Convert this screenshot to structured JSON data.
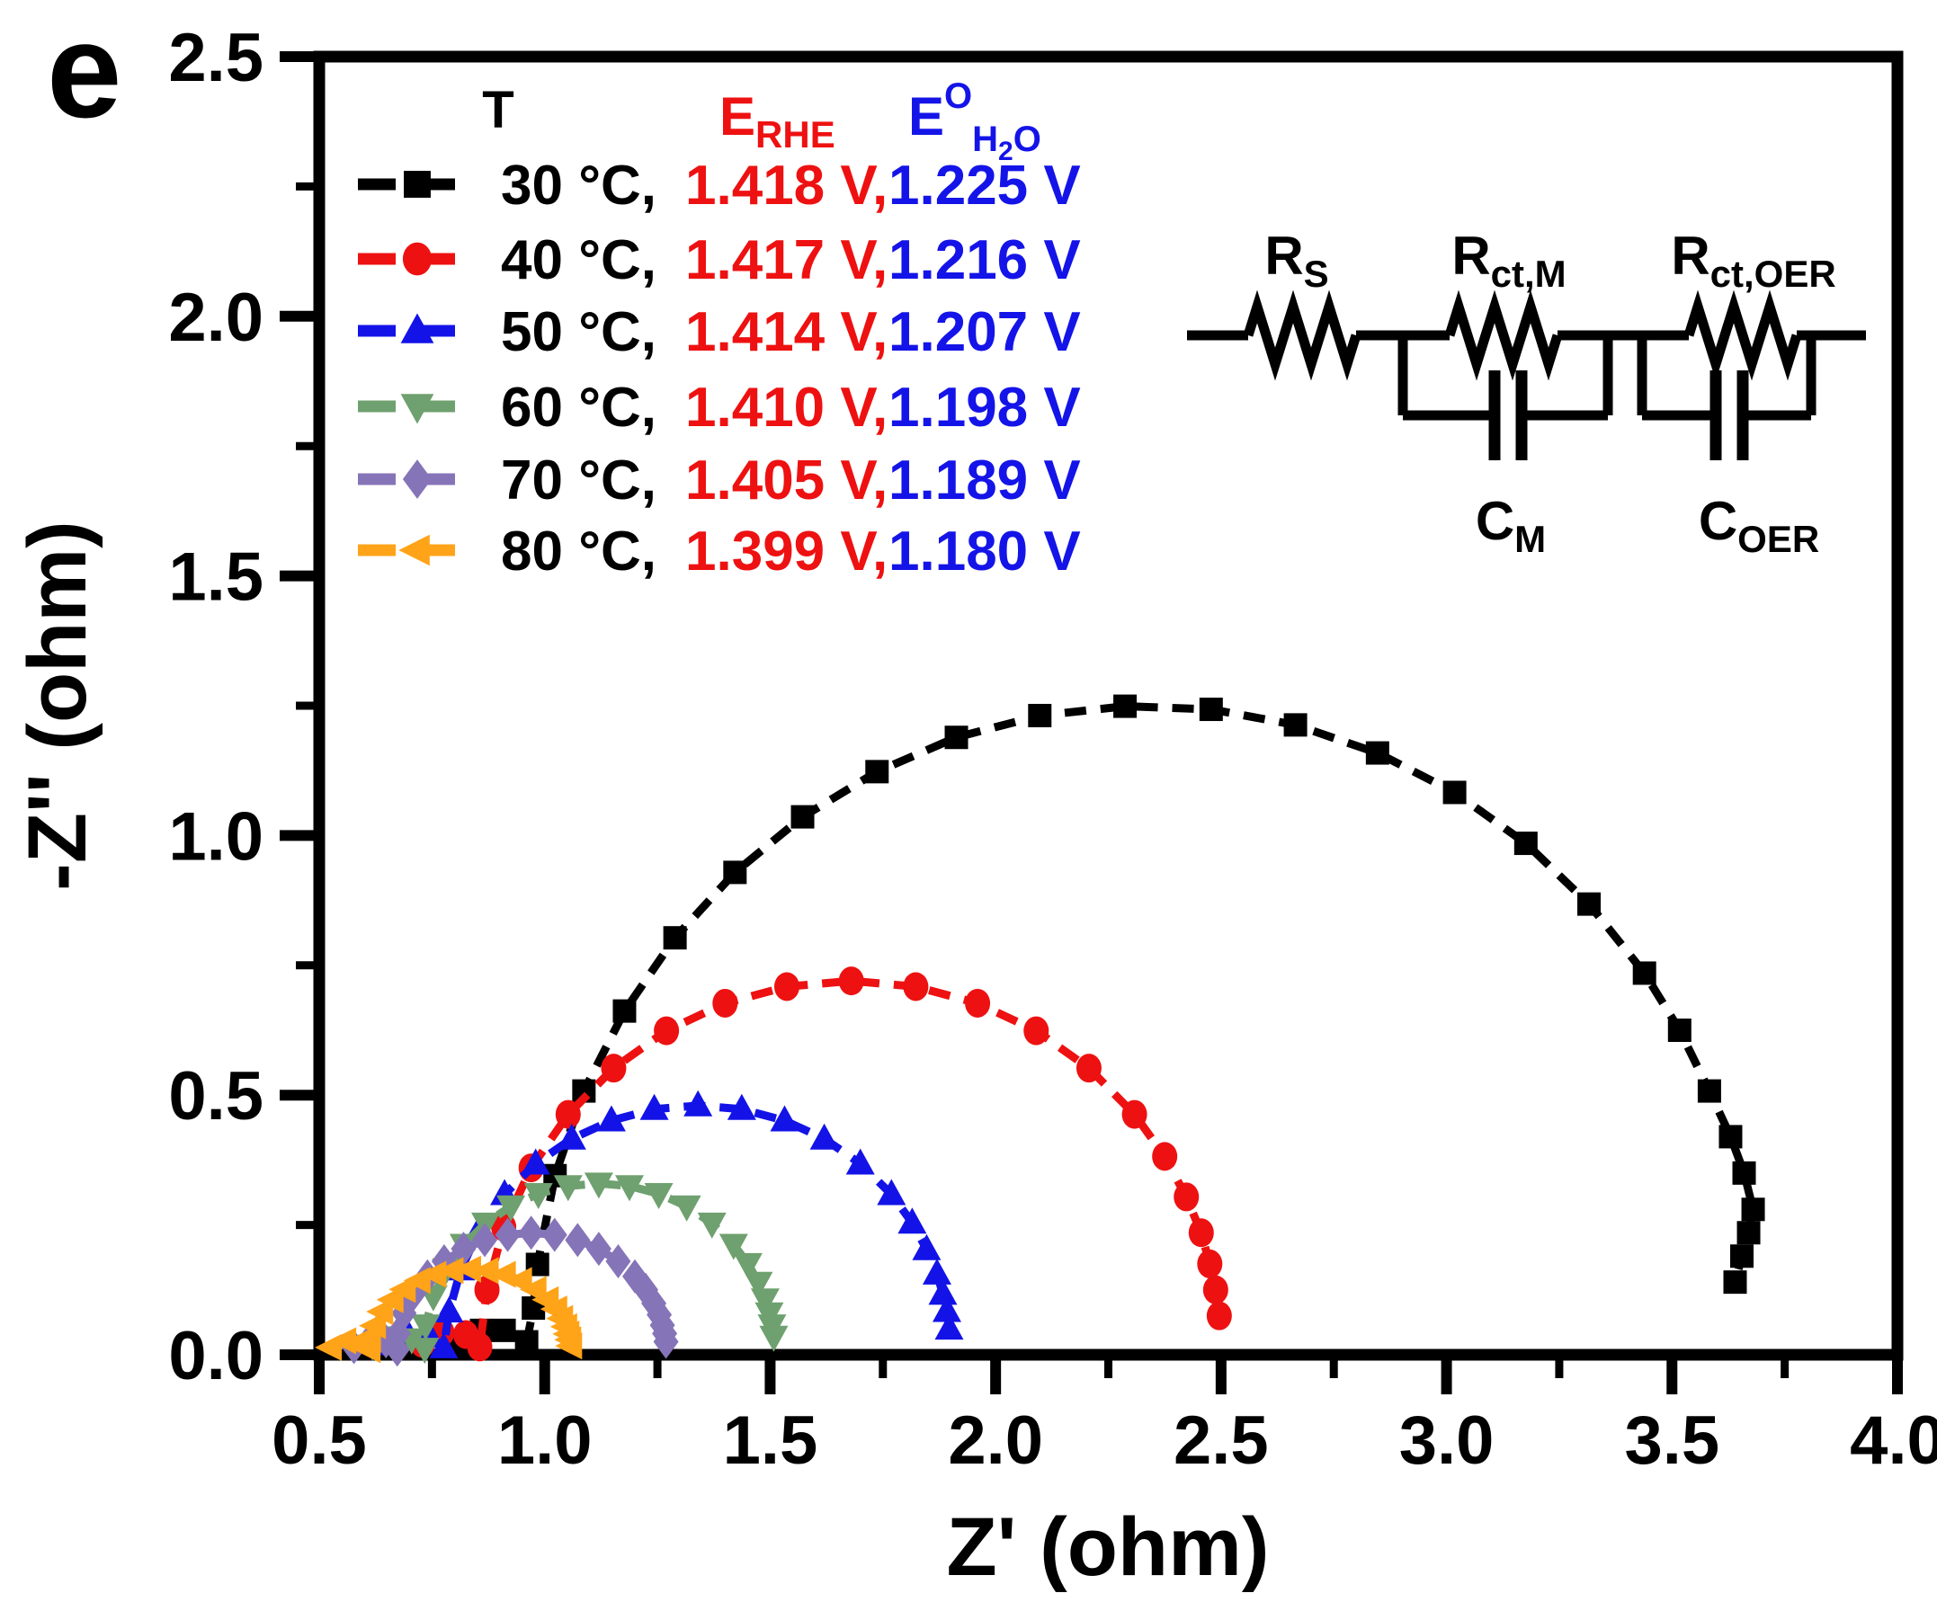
{
  "panel_label": "e",
  "figure": {
    "background": "#ffffff",
    "axis_color": "#000000",
    "legend_red": "#ee1111",
    "legend_blue": "#1414e8"
  },
  "axes": {
    "x": {
      "title": "Z' (ohm)",
      "min": 0.5,
      "max": 4.0,
      "major_ticks": [
        0.5,
        1.0,
        1.5,
        2.0,
        2.5,
        3.0,
        3.5,
        4.0
      ],
      "tick_labels": [
        "0.5",
        "1.0",
        "1.5",
        "2.0",
        "2.5",
        "3.0",
        "3.5",
        "4.0"
      ],
      "minor_ticks": [
        0.75,
        1.25,
        1.75,
        2.25,
        2.75,
        3.25,
        3.75
      ]
    },
    "y": {
      "title": "-Z'' (ohm)",
      "min": 0.0,
      "max": 2.5,
      "major_ticks": [
        0.0,
        0.5,
        1.0,
        1.5,
        2.0,
        2.5
      ],
      "tick_labels": [
        "0.0",
        "0.5",
        "1.0",
        "1.5",
        "2.0",
        "2.5"
      ],
      "minor_ticks": [
        0.25,
        0.75,
        1.25,
        1.75,
        2.25
      ]
    }
  },
  "legend": {
    "header": {
      "t": "T",
      "erhe": {
        "main": "E",
        "sub": "RHE"
      },
      "eh2o": {
        "main": "E",
        "sup": "O",
        "sub_pre": "H",
        "sub_num": "2",
        "sub_post": "O"
      }
    },
    "rows": [
      {
        "temp": "30 °C,",
        "erhe": "1.418 V,",
        "eh2o": "1.225 V",
        "series": 0
      },
      {
        "temp": "40 °C,",
        "erhe": "1.417 V,",
        "eh2o": "1.216 V",
        "series": 1
      },
      {
        "temp": "50 °C,",
        "erhe": "1.414 V,",
        "eh2o": "1.207 V",
        "series": 2
      },
      {
        "temp": "60 °C,",
        "erhe": "1.410 V,",
        "eh2o": "1.198 V",
        "series": 3
      },
      {
        "temp": "70 °C,",
        "erhe": "1.405 V,",
        "eh2o": "1.189 V",
        "series": 4
      },
      {
        "temp": "80 °C,",
        "erhe": "1.399 V,",
        "eh2o": "1.180 V",
        "series": 5
      }
    ]
  },
  "circuit": {
    "labels": {
      "rs": {
        "main": "R",
        "sub": "S"
      },
      "rctm": {
        "main": "R",
        "sub": "ct,M"
      },
      "rctoer": {
        "main": "R",
        "sub": "ct,OER"
      },
      "cm": {
        "main": "C",
        "sub": "M"
      },
      "coer": {
        "main": "C",
        "sub": "OER"
      }
    }
  },
  "chart_data": {
    "type": "scatter",
    "title": "",
    "xlabel": "Z' (ohm)",
    "ylabel": "-Z'' (ohm)",
    "xlim": [
      0.5,
      4.0
    ],
    "ylim": [
      0.0,
      2.5
    ],
    "grid": false,
    "legend_position": "upper-left",
    "series": [
      {
        "name": "30 °C",
        "erhe": "1.418 V",
        "eh2o": "1.225 V",
        "color": "#000000",
        "marker": "square",
        "points": [
          [
            0.81,
            0.025
          ],
          [
            0.86,
            0.047
          ],
          [
            0.91,
            0.047
          ],
          [
            0.96,
            0.025
          ],
          [
            0.975,
            0.09
          ],
          [
            0.984,
            0.174
          ],
          [
            1.023,
            0.345
          ],
          [
            1.087,
            0.508
          ],
          [
            1.177,
            0.662
          ],
          [
            1.289,
            0.803
          ],
          [
            1.422,
            0.929
          ],
          [
            1.572,
            1.036
          ],
          [
            1.737,
            1.123
          ],
          [
            1.913,
            1.189
          ],
          [
            2.098,
            1.231
          ],
          [
            2.287,
            1.249
          ],
          [
            2.478,
            1.243
          ],
          [
            2.665,
            1.213
          ],
          [
            2.847,
            1.159
          ],
          [
            3.018,
            1.083
          ],
          [
            3.176,
            0.985
          ],
          [
            3.316,
            0.868
          ],
          [
            3.439,
            0.735
          ],
          [
            3.517,
            0.625
          ],
          [
            3.583,
            0.508
          ],
          [
            3.63,
            0.42
          ],
          [
            3.66,
            0.35
          ],
          [
            3.68,
            0.28
          ],
          [
            3.67,
            0.235
          ],
          [
            3.655,
            0.19
          ],
          [
            3.64,
            0.14
          ]
        ]
      },
      {
        "name": "40 °C",
        "erhe": "1.417 V",
        "eh2o": "1.216 V",
        "color": "#ee1111",
        "marker": "circle",
        "points": [
          [
            0.729,
            0.022
          ],
          [
            0.772,
            0.043
          ],
          [
            0.825,
            0.039
          ],
          [
            0.856,
            0.015
          ],
          [
            0.872,
            0.125
          ],
          [
            0.909,
            0.246
          ],
          [
            0.97,
            0.36
          ],
          [
            1.052,
            0.463
          ],
          [
            1.153,
            0.552
          ],
          [
            1.27,
            0.624
          ],
          [
            1.4,
            0.677
          ],
          [
            1.537,
            0.709
          ],
          [
            1.68,
            0.72
          ],
          [
            1.823,
            0.709
          ],
          [
            1.96,
            0.677
          ],
          [
            2.09,
            0.624
          ],
          [
            2.207,
            0.552
          ],
          [
            2.308,
            0.463
          ],
          [
            2.375,
            0.382
          ],
          [
            2.423,
            0.304
          ],
          [
            2.456,
            0.235
          ],
          [
            2.475,
            0.175
          ],
          [
            2.488,
            0.125
          ],
          [
            2.496,
            0.075
          ]
        ]
      },
      {
        "name": "50 °C",
        "erhe": "1.414 V",
        "eh2o": "1.207 V",
        "color": "#1313e8",
        "marker": "triangle-up",
        "points": [
          [
            0.659,
            0.02
          ],
          [
            0.697,
            0.039
          ],
          [
            0.745,
            0.035
          ],
          [
            0.776,
            0.014
          ],
          [
            0.788,
            0.083
          ],
          [
            0.814,
            0.164
          ],
          [
            0.855,
            0.24
          ],
          [
            0.911,
            0.309
          ],
          [
            0.98,
            0.368
          ],
          [
            1.06,
            0.416
          ],
          [
            1.148,
            0.451
          ],
          [
            1.243,
            0.473
          ],
          [
            1.34,
            0.48
          ],
          [
            1.437,
            0.473
          ],
          [
            1.532,
            0.451
          ],
          [
            1.62,
            0.416
          ],
          [
            1.7,
            0.368
          ],
          [
            1.769,
            0.309
          ],
          [
            1.815,
            0.254
          ],
          [
            1.847,
            0.203
          ],
          [
            1.87,
            0.156
          ],
          [
            1.883,
            0.117
          ],
          [
            1.892,
            0.084
          ],
          [
            1.897,
            0.05
          ]
        ]
      },
      {
        "name": "60 °C",
        "erhe": "1.410 V",
        "eh2o": "1.198 V",
        "color": "#6fa06f",
        "marker": "triangle-down",
        "points": [
          [
            0.618,
            0.018
          ],
          [
            0.661,
            0.034
          ],
          [
            0.705,
            0.03
          ],
          [
            0.734,
            0.012
          ],
          [
            0.736,
            0.057
          ],
          [
            0.753,
            0.113
          ],
          [
            0.782,
            0.165
          ],
          [
            0.821,
            0.212
          ],
          [
            0.869,
            0.253
          ],
          [
            0.925,
            0.286
          ],
          [
            0.986,
            0.31
          ],
          [
            1.052,
            0.325
          ],
          [
            1.12,
            0.33
          ],
          [
            1.188,
            0.325
          ],
          [
            1.253,
            0.31
          ],
          [
            1.315,
            0.286
          ],
          [
            1.371,
            0.253
          ],
          [
            1.419,
            0.212
          ],
          [
            1.451,
            0.175
          ],
          [
            1.474,
            0.139
          ],
          [
            1.489,
            0.107
          ],
          [
            1.498,
            0.08
          ],
          [
            1.504,
            0.057
          ],
          [
            1.508,
            0.035
          ]
        ]
      },
      {
        "name": "70 °C",
        "erhe": "1.405 V",
        "eh2o": "1.189 V",
        "color": "#8674b8",
        "marker": "diamond",
        "points": [
          [
            0.577,
            0.015
          ],
          [
            0.612,
            0.029
          ],
          [
            0.648,
            0.026
          ],
          [
            0.673,
            0.01
          ],
          [
            0.675,
            0.041
          ],
          [
            0.688,
            0.08
          ],
          [
            0.71,
            0.118
          ],
          [
            0.74,
            0.151
          ],
          [
            0.777,
            0.18
          ],
          [
            0.82,
            0.204
          ],
          [
            0.867,
            0.221
          ],
          [
            0.918,
            0.231
          ],
          [
            0.97,
            0.235
          ],
          [
            1.022,
            0.231
          ],
          [
            1.073,
            0.221
          ],
          [
            1.12,
            0.204
          ],
          [
            1.163,
            0.18
          ],
          [
            1.2,
            0.151
          ],
          [
            1.224,
            0.125
          ],
          [
            1.242,
            0.099
          ],
          [
            1.254,
            0.077
          ],
          [
            1.261,
            0.057
          ],
          [
            1.266,
            0.041
          ],
          [
            1.269,
            0.025
          ]
        ]
      },
      {
        "name": "80 °C",
        "erhe": "1.399 V",
        "eh2o": "1.180 V",
        "color": "#ffa318",
        "marker": "triangle-left",
        "points": [
          [
            0.526,
            0.014
          ],
          [
            0.558,
            0.027
          ],
          [
            0.59,
            0.024
          ],
          [
            0.612,
            0.01
          ],
          [
            0.613,
            0.029
          ],
          [
            0.624,
            0.056
          ],
          [
            0.64,
            0.083
          ],
          [
            0.663,
            0.106
          ],
          [
            0.69,
            0.126
          ],
          [
            0.723,
            0.143
          ],
          [
            0.758,
            0.155
          ],
          [
            0.796,
            0.162
          ],
          [
            0.835,
            0.165
          ],
          [
            0.874,
            0.162
          ],
          [
            0.912,
            0.155
          ],
          [
            0.948,
            0.143
          ],
          [
            0.98,
            0.126
          ],
          [
            1.007,
            0.106
          ],
          [
            1.026,
            0.088
          ],
          [
            1.039,
            0.07
          ],
          [
            1.048,
            0.054
          ],
          [
            1.053,
            0.04
          ],
          [
            1.057,
            0.029
          ],
          [
            1.059,
            0.017
          ]
        ]
      }
    ]
  }
}
